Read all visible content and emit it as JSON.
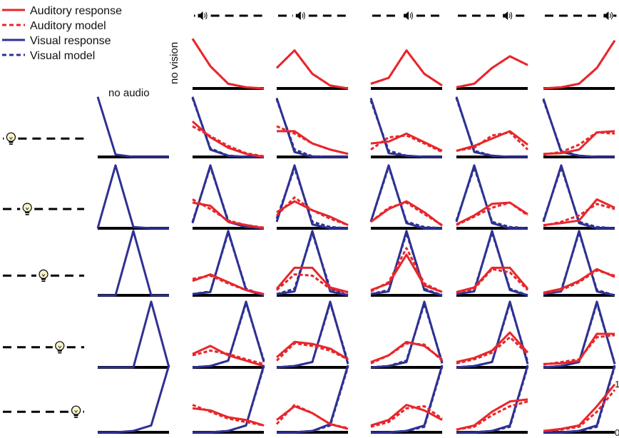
{
  "colors": {
    "auditory": "#e8262b",
    "visual": "#2e3192",
    "axis": "#000000",
    "dash": "#000000",
    "bulb": "#f7f3c8"
  },
  "legend": [
    {
      "label": "Auditory response",
      "modality": "auditory",
      "style": "solid"
    },
    {
      "label": "Auditory model",
      "modality": "auditory",
      "style": "dashed"
    },
    {
      "label": "Visual response",
      "modality": "visual",
      "style": "solid"
    },
    {
      "label": "Visual model",
      "modality": "visual",
      "style": "dashed"
    }
  ],
  "labels": {
    "no_vision": "no vision",
    "no_audio": "no audio",
    "y_top": "1",
    "y_bottom": "0"
  },
  "icons": {
    "column_header": "speaker-icon",
    "row_header": "light-bulb-icon"
  },
  "chart_data": {
    "type": "line",
    "title": "",
    "positions": 5,
    "ylim": [
      0,
      1
    ],
    "column_stimulus_positions": [
      null,
      1,
      2,
      3,
      4,
      5
    ],
    "row_stimulus_positions": [
      null,
      1,
      2,
      3,
      4,
      5
    ],
    "panels": [
      [
        null,
        {
          "a": [
            0.85,
            0.38,
            0.08,
            0.02,
            0.0
          ],
          "am": [
            0.85,
            0.38,
            0.08,
            0.02,
            0.0
          ],
          "v": null,
          "vm": null
        },
        {
          "a": [
            0.35,
            0.65,
            0.25,
            0.05,
            0.0
          ],
          "am": [
            0.35,
            0.65,
            0.25,
            0.05,
            0.0
          ],
          "v": null,
          "vm": null
        },
        {
          "a": [
            0.08,
            0.18,
            0.65,
            0.25,
            0.05
          ],
          "am": [
            0.08,
            0.18,
            0.65,
            0.25,
            0.05
          ],
          "v": null,
          "vm": null
        },
        {
          "a": [
            0.02,
            0.08,
            0.35,
            0.55,
            0.4
          ],
          "am": [
            0.02,
            0.08,
            0.35,
            0.55,
            0.4
          ],
          "v": null,
          "vm": null
        },
        {
          "a": [
            0.0,
            0.02,
            0.08,
            0.35,
            0.82
          ],
          "am": [
            0.0,
            0.02,
            0.08,
            0.35,
            0.82
          ],
          "v": null,
          "vm": null
        }
      ],
      [
        {
          "a": null,
          "am": null,
          "v": [
            0.98,
            0.04,
            0.0,
            0.0,
            0.0
          ],
          "vm": null
        },
        {
          "a": [
            0.58,
            0.32,
            0.15,
            0.05,
            0.0
          ],
          "am": [
            0.5,
            0.34,
            0.18,
            0.06,
            0.01
          ],
          "v": [
            0.98,
            0.12,
            0.02,
            0.0,
            0.0
          ],
          "vm": [
            0.96,
            0.14,
            0.02,
            0.0,
            0.0
          ]
        },
        {
          "a": [
            0.42,
            0.42,
            0.22,
            0.12,
            0.05
          ],
          "am": [
            0.5,
            0.38,
            0.22,
            0.12,
            0.05
          ],
          "v": [
            0.96,
            0.08,
            0.0,
            0.0,
            0.0
          ],
          "vm": [
            0.94,
            0.12,
            0.01,
            0.0,
            0.0
          ]
        },
        {
          "a": [
            0.22,
            0.25,
            0.38,
            0.24,
            0.1
          ],
          "am": [
            0.12,
            0.32,
            0.35,
            0.22,
            0.08
          ],
          "v": [
            0.96,
            0.06,
            0.02,
            0.0,
            0.0
          ],
          "vm": [
            0.92,
            0.1,
            0.02,
            0.0,
            0.0
          ]
        },
        {
          "a": [
            0.1,
            0.18,
            0.3,
            0.42,
            0.2
          ],
          "am": [
            0.1,
            0.15,
            0.35,
            0.4,
            0.12
          ],
          "v": [
            0.98,
            0.08,
            0.02,
            0.0,
            0.0
          ],
          "vm": [
            0.96,
            0.1,
            0.02,
            0.0,
            0.0
          ]
        },
        {
          "a": [
            0.05,
            0.06,
            0.12,
            0.4,
            0.42
          ],
          "am": [
            0.04,
            0.08,
            0.2,
            0.4,
            0.38
          ],
          "v": [
            0.95,
            0.08,
            0.02,
            0.0,
            0.0
          ],
          "vm": [
            0.93,
            0.1,
            0.02,
            0.0,
            0.0
          ]
        }
      ],
      [
        {
          "a": null,
          "am": null,
          "v": [
            0.0,
            0.98,
            0.02,
            0.0,
            0.0
          ],
          "vm": null
        },
        {
          "a": [
            0.4,
            0.35,
            0.1,
            0.05,
            0.0
          ],
          "am": [
            0.45,
            0.3,
            0.12,
            0.05,
            0.01
          ],
          "v": [
            0.08,
            0.98,
            0.1,
            0.02,
            0.0
          ],
          "vm": [
            0.1,
            0.96,
            0.12,
            0.02,
            0.0
          ]
        },
        {
          "a": [
            0.25,
            0.42,
            0.28,
            0.18,
            0.05
          ],
          "am": [
            0.2,
            0.48,
            0.28,
            0.15,
            0.05
          ],
          "v": [
            0.1,
            0.98,
            0.06,
            0.0,
            0.0
          ],
          "vm": [
            0.15,
            0.94,
            0.1,
            0.02,
            0.0
          ]
        },
        {
          "a": [
            0.1,
            0.3,
            0.42,
            0.25,
            0.04
          ],
          "am": [
            0.1,
            0.32,
            0.4,
            0.22,
            0.05
          ],
          "v": [
            0.1,
            0.98,
            0.08,
            0.0,
            0.0
          ],
          "vm": [
            0.1,
            0.96,
            0.1,
            0.02,
            0.0
          ]
        },
        {
          "a": [
            0.06,
            0.2,
            0.38,
            0.4,
            0.22
          ],
          "am": [
            0.05,
            0.18,
            0.32,
            0.4,
            0.2
          ],
          "v": [
            0.1,
            0.98,
            0.08,
            0.0,
            0.0
          ],
          "vm": [
            0.12,
            0.95,
            0.1,
            0.02,
            0.0
          ]
        },
        {
          "a": [
            0.05,
            0.08,
            0.12,
            0.45,
            0.32
          ],
          "am": [
            0.04,
            0.1,
            0.2,
            0.38,
            0.3
          ],
          "v": [
            0.1,
            0.98,
            0.08,
            0.0,
            0.0
          ],
          "vm": [
            0.12,
            0.95,
            0.1,
            0.02,
            0.0
          ]
        }
      ],
      [
        {
          "a": null,
          "am": null,
          "v": [
            0.0,
            0.0,
            0.98,
            0.0,
            0.0
          ],
          "vm": null
        },
        {
          "a": [
            0.22,
            0.32,
            0.2,
            0.08,
            0.02
          ],
          "am": [
            0.25,
            0.3,
            0.18,
            0.08,
            0.02
          ],
          "v": [
            0.02,
            0.05,
            0.98,
            0.08,
            0.0
          ],
          "vm": [
            0.02,
            0.06,
            0.96,
            0.1,
            0.0
          ]
        },
        {
          "a": [
            0.1,
            0.42,
            0.42,
            0.12,
            0.05
          ],
          "am": [
            0.08,
            0.32,
            0.3,
            0.1,
            0.04
          ],
          "v": [
            0.02,
            0.06,
            0.98,
            0.06,
            0.0
          ],
          "vm": [
            0.02,
            0.1,
            0.95,
            0.1,
            0.0
          ]
        },
        {
          "a": [
            0.08,
            0.18,
            0.62,
            0.15,
            0.05
          ],
          "am": [
            0.06,
            0.2,
            0.72,
            0.18,
            0.05
          ],
          "v": [
            0.02,
            0.06,
            0.98,
            0.08,
            0.0
          ],
          "vm": [
            0.02,
            0.08,
            0.95,
            0.1,
            0.0
          ]
        },
        {
          "a": [
            0.05,
            0.12,
            0.42,
            0.42,
            0.1
          ],
          "am": [
            0.04,
            0.1,
            0.4,
            0.35,
            0.08
          ],
          "v": [
            0.02,
            0.06,
            0.98,
            0.08,
            0.0
          ],
          "vm": [
            0.02,
            0.08,
            0.96,
            0.1,
            0.0
          ]
        },
        {
          "a": [
            0.04,
            0.1,
            0.22,
            0.4,
            0.28
          ],
          "am": [
            0.03,
            0.08,
            0.2,
            0.38,
            0.3
          ],
          "v": [
            0.02,
            0.06,
            0.98,
            0.06,
            0.0
          ],
          "vm": [
            0.02,
            0.08,
            0.96,
            0.08,
            0.0
          ]
        }
      ],
      [
        {
          "a": null,
          "am": null,
          "v": [
            0.0,
            0.0,
            0.0,
            0.98,
            0.0
          ],
          "vm": null
        },
        {
          "a": [
            0.2,
            0.32,
            0.18,
            0.1,
            0.02
          ],
          "am": [
            0.18,
            0.25,
            0.2,
            0.12,
            0.05
          ],
          "v": [
            0.0,
            0.02,
            0.1,
            0.98,
            0.08
          ],
          "vm": [
            0.0,
            0.02,
            0.1,
            0.96,
            0.1
          ]
        },
        {
          "a": [
            0.15,
            0.38,
            0.35,
            0.28,
            0.12
          ],
          "am": [
            0.1,
            0.36,
            0.32,
            0.25,
            0.12
          ],
          "v": [
            0.0,
            0.02,
            0.08,
            0.98,
            0.05
          ],
          "vm": [
            0.0,
            0.02,
            0.08,
            0.96,
            0.08
          ]
        },
        {
          "a": [
            0.08,
            0.18,
            0.38,
            0.32,
            0.12
          ],
          "am": [
            0.06,
            0.18,
            0.36,
            0.34,
            0.1
          ],
          "v": [
            0.0,
            0.02,
            0.08,
            0.98,
            0.06
          ],
          "vm": [
            0.0,
            0.02,
            0.1,
            0.95,
            0.08
          ]
        },
        {
          "a": [
            0.08,
            0.14,
            0.25,
            0.52,
            0.22
          ],
          "am": [
            0.06,
            0.12,
            0.22,
            0.45,
            0.2
          ],
          "v": [
            0.0,
            0.02,
            0.08,
            0.98,
            0.05
          ],
          "vm": [
            0.0,
            0.02,
            0.08,
            0.96,
            0.08
          ]
        },
        {
          "a": [
            0.05,
            0.06,
            0.1,
            0.5,
            0.5
          ],
          "am": [
            0.04,
            0.08,
            0.12,
            0.45,
            0.48
          ],
          "v": [
            0.0,
            0.02,
            0.08,
            0.98,
            0.05
          ],
          "vm": [
            0.0,
            0.02,
            0.08,
            0.96,
            0.06
          ]
        }
      ],
      [
        {
          "a": null,
          "am": null,
          "v": [
            0.0,
            0.0,
            0.02,
            0.1,
            0.98
          ],
          "vm": null
        },
        {
          "a": [
            0.35,
            0.32,
            0.22,
            0.18,
            0.1
          ],
          "am": [
            0.4,
            0.3,
            0.2,
            0.15,
            0.1
          ],
          "v": [
            0.0,
            0.0,
            0.02,
            0.1,
            0.98
          ],
          "vm": [
            0.0,
            0.0,
            0.02,
            0.1,
            0.96
          ]
        },
        {
          "a": [
            0.18,
            0.38,
            0.28,
            0.12,
            0.05
          ],
          "am": [
            0.12,
            0.4,
            0.28,
            0.12,
            0.06
          ],
          "v": [
            0.0,
            0.0,
            0.02,
            0.12,
            0.98
          ],
          "vm": [
            0.0,
            0.0,
            0.02,
            0.1,
            0.96
          ]
        },
        {
          "a": [
            0.1,
            0.18,
            0.4,
            0.32,
            0.18
          ],
          "am": [
            0.08,
            0.15,
            0.35,
            0.38,
            0.2
          ],
          "v": [
            0.0,
            0.0,
            0.02,
            0.1,
            0.98
          ],
          "vm": [
            0.0,
            0.0,
            0.02,
            0.08,
            0.96
          ]
        },
        {
          "a": [
            0.04,
            0.1,
            0.3,
            0.45,
            0.48
          ],
          "am": [
            0.04,
            0.08,
            0.25,
            0.38,
            0.45
          ],
          "v": [
            0.0,
            0.0,
            0.02,
            0.1,
            0.98
          ],
          "vm": [
            0.0,
            0.0,
            0.02,
            0.08,
            0.96
          ]
        },
        {
          "a": [
            0.02,
            0.05,
            0.1,
            0.38,
            0.7
          ],
          "am": [
            0.02,
            0.04,
            0.08,
            0.3,
            0.62
          ],
          "v": [
            0.0,
            0.0,
            0.02,
            0.1,
            0.98
          ],
          "vm": [
            0.0,
            0.0,
            0.02,
            0.08,
            0.96
          ]
        }
      ]
    ]
  }
}
